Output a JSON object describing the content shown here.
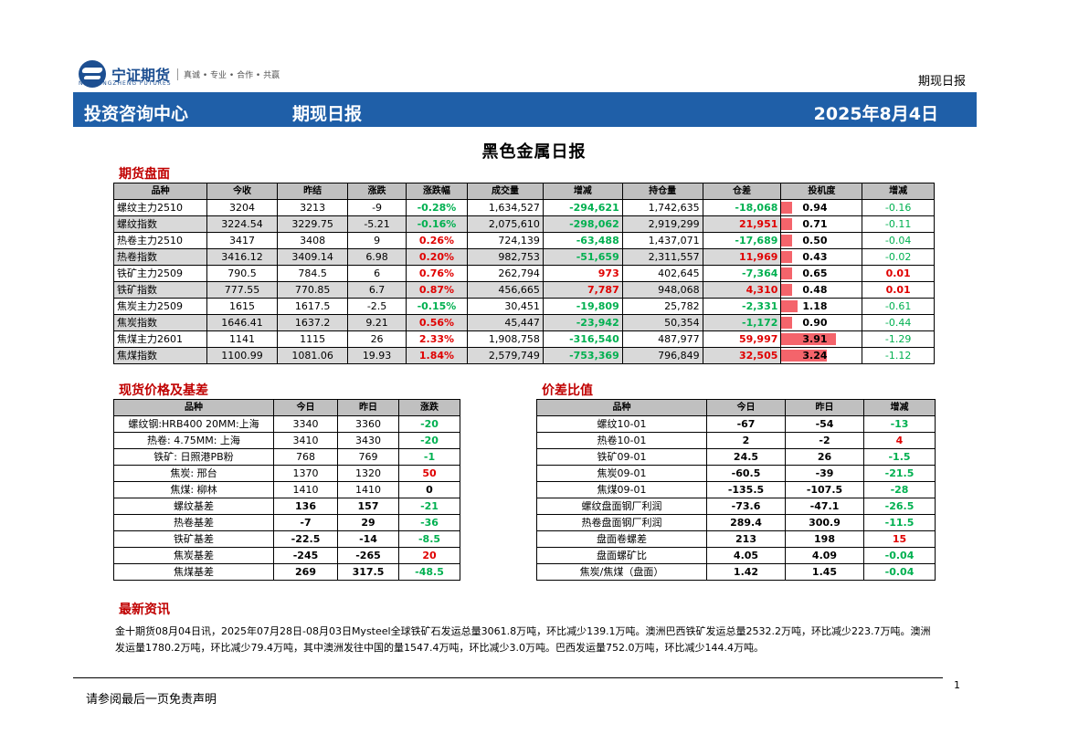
{
  "header": {
    "logo_cn": "宁证期货",
    "logo_en": "NFC NINGZHENG FUTURES",
    "slogan": "真诚 • 专业 • 合作 • 共赢",
    "report_type": "期现日报",
    "bar_left": "投资咨询中心",
    "bar_mid": "期现日报",
    "bar_date": "2025年8月4日"
  },
  "page_title": "黑色金属日报",
  "futures": {
    "section_title": "期货盘面",
    "headers": [
      "品种",
      "今收",
      "昨结",
      "涨跌",
      "涨跌幅",
      "成交量",
      "增减",
      "持仓量",
      "仓差",
      "投机度",
      "增减"
    ],
    "rows": [
      [
        "螺纹主力2510",
        "3204",
        "3213",
        "-9",
        "-0.28%",
        "1,634,527",
        "-294,621",
        "1,742,635",
        "-18,068",
        "0.94",
        "-0.16"
      ],
      [
        "螺纹指数",
        "3224.54",
        "3229.75",
        "-5.21",
        "-0.16%",
        "2,075,610",
        "-298,062",
        "2,919,299",
        "21,951",
        "0.71",
        "-0.11"
      ],
      [
        "热卷主力2510",
        "3417",
        "3408",
        "9",
        "0.26%",
        "724,139",
        "-63,488",
        "1,437,071",
        "-17,689",
        "0.50",
        "-0.04"
      ],
      [
        "热卷指数",
        "3416.12",
        "3409.14",
        "6.98",
        "0.20%",
        "982,753",
        "-51,659",
        "2,311,557",
        "11,969",
        "0.43",
        "-0.02"
      ],
      [
        "铁矿主力2509",
        "790.5",
        "784.5",
        "6",
        "0.76%",
        "262,794",
        "973",
        "402,645",
        "-7,364",
        "0.65",
        "0.01"
      ],
      [
        "铁矿指数",
        "777.55",
        "770.85",
        "6.7",
        "0.87%",
        "456,665",
        "7,787",
        "948,068",
        "4,310",
        "0.48",
        "0.01"
      ],
      [
        "焦炭主力2509",
        "1615",
        "1617.5",
        "-2.5",
        "-0.15%",
        "30,451",
        "-19,809",
        "25,782",
        "-2,331",
        "1.18",
        "-0.61"
      ],
      [
        "焦炭指数",
        "1646.41",
        "1637.2",
        "9.21",
        "0.56%",
        "45,447",
        "-23,942",
        "50,354",
        "-1,172",
        "0.90",
        "-0.44"
      ],
      [
        "焦煤主力2601",
        "1141",
        "1115",
        "26",
        "2.33%",
        "1,908,758",
        "-316,540",
        "487,977",
        "59,997",
        "3.91",
        "-1.29"
      ],
      [
        "焦煤指数",
        "1100.99",
        "1081.06",
        "19.93",
        "1.84%",
        "2,579,749",
        "-753,369",
        "796,849",
        "32,505",
        "3.24",
        "-1.12"
      ]
    ]
  },
  "spot": {
    "section_title": "现货价格及基差",
    "headers": [
      "品种",
      "今日",
      "昨日",
      "涨跌"
    ],
    "rows": [
      [
        "螺纹钢:HRB400 20MM:上海",
        "3340",
        "3360",
        "-20"
      ],
      [
        "热卷: 4.75MM: 上海",
        "3410",
        "3430",
        "-20"
      ],
      [
        "铁矿: 日照港PB粉",
        "768",
        "769",
        "-1"
      ],
      [
        "焦炭: 邢台",
        "1370",
        "1320",
        "50"
      ],
      [
        "焦煤: 柳林",
        "1410",
        "1410",
        "0"
      ],
      [
        "螺纹基差",
        "136",
        "157",
        "-21"
      ],
      [
        "热卷基差",
        "-7",
        "29",
        "-36"
      ],
      [
        "铁矿基差",
        "-22.5",
        "-14",
        "-8.5"
      ],
      [
        "焦炭基差",
        "-245",
        "-265",
        "20"
      ],
      [
        "焦煤基差",
        "269",
        "317.5",
        "-48.5"
      ]
    ]
  },
  "spread": {
    "section_title": "价差比值",
    "headers": [
      "品种",
      "今日",
      "昨日",
      "增减"
    ],
    "rows": [
      [
        "螺纹10-01",
        "-67",
        "-54",
        "-13"
      ],
      [
        "热卷10-01",
        "2",
        "-2",
        "4"
      ],
      [
        "铁矿09-01",
        "24.5",
        "26",
        "-1.5"
      ],
      [
        "焦炭09-01",
        "-60.5",
        "-39",
        "-21.5"
      ],
      [
        "焦煤09-01",
        "-135.5",
        "-107.5",
        "-28"
      ],
      [
        "螺纹盘面钢厂利润",
        "-73.6",
        "-47.1",
        "-26.5"
      ],
      [
        "热卷盘面钢厂利润",
        "289.4",
        "300.9",
        "-11.5"
      ],
      [
        "盘面卷螺差",
        "213",
        "198",
        "15"
      ],
      [
        "盘面螺矿比",
        "4.05",
        "4.09",
        "-0.04"
      ],
      [
        "焦炭/焦煤（盘面）",
        "1.42",
        "1.45",
        "-0.04"
      ]
    ]
  },
  "news": {
    "section_title": "最新资讯",
    "text": "金十期货08月04日讯，2025年07月28日-08月03日Mysteel全球铁矿石发运总量3061.8万吨，环比减少139.1万吨。澳洲巴西铁矿发运总量2532.2万吨，环比减少223.7万吨。澳洲发运量1780.2万吨，环比减少79.4万吨，其中澳洲发往中国的量1547.4万吨，环比减少3.0万吨。巴西发运量752.0万吨，环比减少144.4万吨。"
  },
  "footer": {
    "disclaimer": "请参阅最后一页免责声明",
    "page": "1"
  },
  "colors": {
    "bar_blue": "#1f5fa8",
    "up_red": "#e00000",
    "down_green": "#00b050",
    "spec_bar": "#f4646b"
  }
}
